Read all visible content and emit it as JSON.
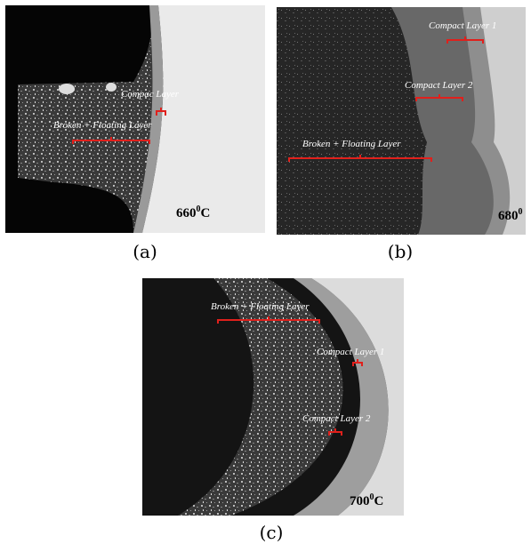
{
  "panels": [
    {
      "caption": "(a)",
      "labels": [
        "Compac Layer",
        "Broken + Floating Layer"
      ],
      "temperature": {
        "value": "660",
        "sup": "0",
        "unit": "C"
      }
    },
    {
      "caption": "(b)",
      "labels": [
        "Compact Layer 1",
        "Compact Layer 2",
        "Broken + Floating Layer"
      ],
      "temperature": {
        "value": "680",
        "sup": "0"
      }
    },
    {
      "caption": "(c)",
      "labels": [
        "Broken + Floating Layer",
        "Compact Layer 1",
        "Compact Layer 2"
      ],
      "temperature": {
        "value": "700",
        "sup": "0",
        "unit": "C"
      }
    }
  ]
}
